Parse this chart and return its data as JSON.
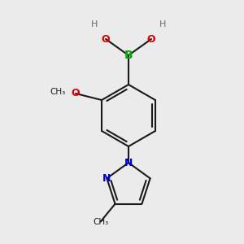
{
  "background_color": "#ebebeb",
  "bond_color": "#1a1a1a",
  "bond_width": 1.5,
  "colors": {
    "B": "#00aa00",
    "O": "#dd0000",
    "N": "#0000cc",
    "C": "#1a1a1a",
    "H": "#607070"
  },
  "figsize": [
    3.0,
    3.0
  ],
  "dpi": 100
}
